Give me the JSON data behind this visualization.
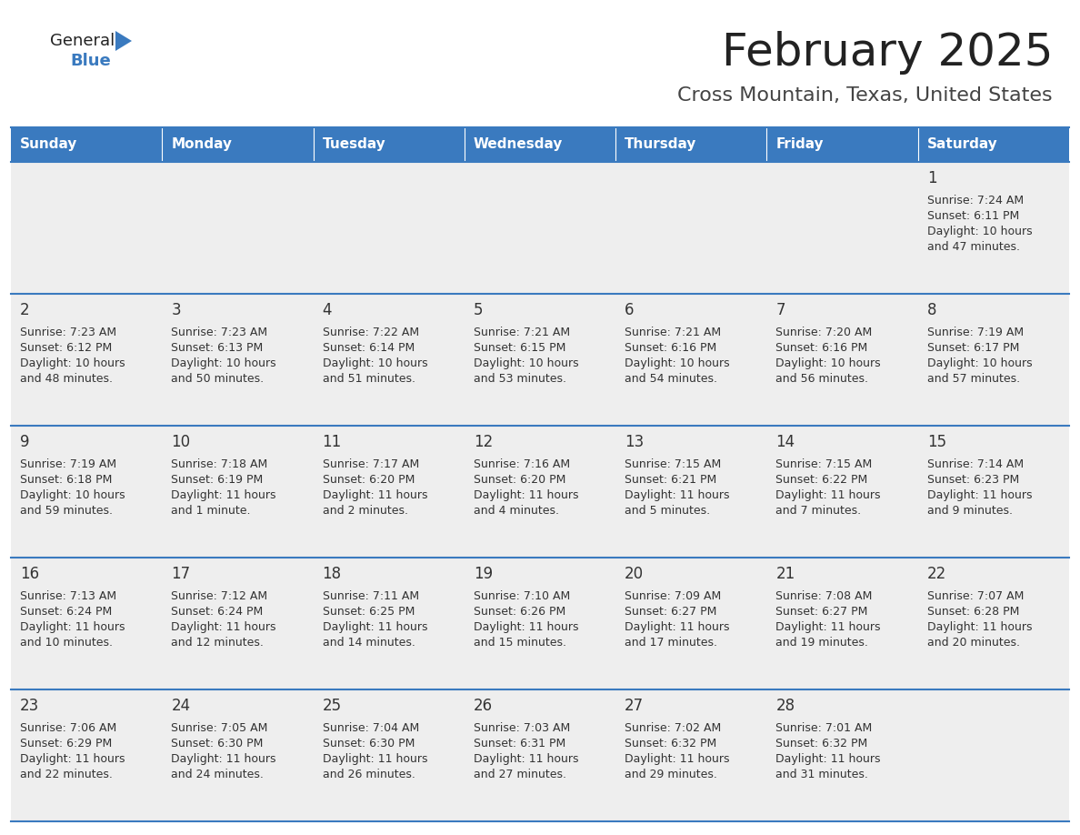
{
  "title": "February 2025",
  "subtitle": "Cross Mountain, Texas, United States",
  "days_of_week": [
    "Sunday",
    "Monday",
    "Tuesday",
    "Wednesday",
    "Thursday",
    "Friday",
    "Saturday"
  ],
  "header_bg": "#3a7abf",
  "header_text": "#ffffff",
  "row_bg_odd": "#eeeeee",
  "row_bg_even": "#ffffff",
  "border_color": "#3a7abf",
  "cell_text_color": "#333333",
  "day_num_color": "#333333",
  "title_color": "#222222",
  "subtitle_color": "#444444",
  "logo_general_color": "#222222",
  "logo_blue_color": "#3a7abf",
  "logo_triangle_color": "#3a7abf",
  "weeks": [
    [
      null,
      null,
      null,
      null,
      null,
      null,
      1
    ],
    [
      2,
      3,
      4,
      5,
      6,
      7,
      8
    ],
    [
      9,
      10,
      11,
      12,
      13,
      14,
      15
    ],
    [
      16,
      17,
      18,
      19,
      20,
      21,
      22
    ],
    [
      23,
      24,
      25,
      26,
      27,
      28,
      null
    ]
  ],
  "cell_data": {
    "1": {
      "sunrise": "7:24 AM",
      "sunset": "6:11 PM",
      "daylight_l1": "Daylight: 10 hours",
      "daylight_l2": "and 47 minutes."
    },
    "2": {
      "sunrise": "7:23 AM",
      "sunset": "6:12 PM",
      "daylight_l1": "Daylight: 10 hours",
      "daylight_l2": "and 48 minutes."
    },
    "3": {
      "sunrise": "7:23 AM",
      "sunset": "6:13 PM",
      "daylight_l1": "Daylight: 10 hours",
      "daylight_l2": "and 50 minutes."
    },
    "4": {
      "sunrise": "7:22 AM",
      "sunset": "6:14 PM",
      "daylight_l1": "Daylight: 10 hours",
      "daylight_l2": "and 51 minutes."
    },
    "5": {
      "sunrise": "7:21 AM",
      "sunset": "6:15 PM",
      "daylight_l1": "Daylight: 10 hours",
      "daylight_l2": "and 53 minutes."
    },
    "6": {
      "sunrise": "7:21 AM",
      "sunset": "6:16 PM",
      "daylight_l1": "Daylight: 10 hours",
      "daylight_l2": "and 54 minutes."
    },
    "7": {
      "sunrise": "7:20 AM",
      "sunset": "6:16 PM",
      "daylight_l1": "Daylight: 10 hours",
      "daylight_l2": "and 56 minutes."
    },
    "8": {
      "sunrise": "7:19 AM",
      "sunset": "6:17 PM",
      "daylight_l1": "Daylight: 10 hours",
      "daylight_l2": "and 57 minutes."
    },
    "9": {
      "sunrise": "7:19 AM",
      "sunset": "6:18 PM",
      "daylight_l1": "Daylight: 10 hours",
      "daylight_l2": "and 59 minutes."
    },
    "10": {
      "sunrise": "7:18 AM",
      "sunset": "6:19 PM",
      "daylight_l1": "Daylight: 11 hours",
      "daylight_l2": "and 1 minute."
    },
    "11": {
      "sunrise": "7:17 AM",
      "sunset": "6:20 PM",
      "daylight_l1": "Daylight: 11 hours",
      "daylight_l2": "and 2 minutes."
    },
    "12": {
      "sunrise": "7:16 AM",
      "sunset": "6:20 PM",
      "daylight_l1": "Daylight: 11 hours",
      "daylight_l2": "and 4 minutes."
    },
    "13": {
      "sunrise": "7:15 AM",
      "sunset": "6:21 PM",
      "daylight_l1": "Daylight: 11 hours",
      "daylight_l2": "and 5 minutes."
    },
    "14": {
      "sunrise": "7:15 AM",
      "sunset": "6:22 PM",
      "daylight_l1": "Daylight: 11 hours",
      "daylight_l2": "and 7 minutes."
    },
    "15": {
      "sunrise": "7:14 AM",
      "sunset": "6:23 PM",
      "daylight_l1": "Daylight: 11 hours",
      "daylight_l2": "and 9 minutes."
    },
    "16": {
      "sunrise": "7:13 AM",
      "sunset": "6:24 PM",
      "daylight_l1": "Daylight: 11 hours",
      "daylight_l2": "and 10 minutes."
    },
    "17": {
      "sunrise": "7:12 AM",
      "sunset": "6:24 PM",
      "daylight_l1": "Daylight: 11 hours",
      "daylight_l2": "and 12 minutes."
    },
    "18": {
      "sunrise": "7:11 AM",
      "sunset": "6:25 PM",
      "daylight_l1": "Daylight: 11 hours",
      "daylight_l2": "and 14 minutes."
    },
    "19": {
      "sunrise": "7:10 AM",
      "sunset": "6:26 PM",
      "daylight_l1": "Daylight: 11 hours",
      "daylight_l2": "and 15 minutes."
    },
    "20": {
      "sunrise": "7:09 AM",
      "sunset": "6:27 PM",
      "daylight_l1": "Daylight: 11 hours",
      "daylight_l2": "and 17 minutes."
    },
    "21": {
      "sunrise": "7:08 AM",
      "sunset": "6:27 PM",
      "daylight_l1": "Daylight: 11 hours",
      "daylight_l2": "and 19 minutes."
    },
    "22": {
      "sunrise": "7:07 AM",
      "sunset": "6:28 PM",
      "daylight_l1": "Daylight: 11 hours",
      "daylight_l2": "and 20 minutes."
    },
    "23": {
      "sunrise": "7:06 AM",
      "sunset": "6:29 PM",
      "daylight_l1": "Daylight: 11 hours",
      "daylight_l2": "and 22 minutes."
    },
    "24": {
      "sunrise": "7:05 AM",
      "sunset": "6:30 PM",
      "daylight_l1": "Daylight: 11 hours",
      "daylight_l2": "and 24 minutes."
    },
    "25": {
      "sunrise": "7:04 AM",
      "sunset": "6:30 PM",
      "daylight_l1": "Daylight: 11 hours",
      "daylight_l2": "and 26 minutes."
    },
    "26": {
      "sunrise": "7:03 AM",
      "sunset": "6:31 PM",
      "daylight_l1": "Daylight: 11 hours",
      "daylight_l2": "and 27 minutes."
    },
    "27": {
      "sunrise": "7:02 AM",
      "sunset": "6:32 PM",
      "daylight_l1": "Daylight: 11 hours",
      "daylight_l2": "and 29 minutes."
    },
    "28": {
      "sunrise": "7:01 AM",
      "sunset": "6:32 PM",
      "daylight_l1": "Daylight: 11 hours",
      "daylight_l2": "and 31 minutes."
    }
  }
}
